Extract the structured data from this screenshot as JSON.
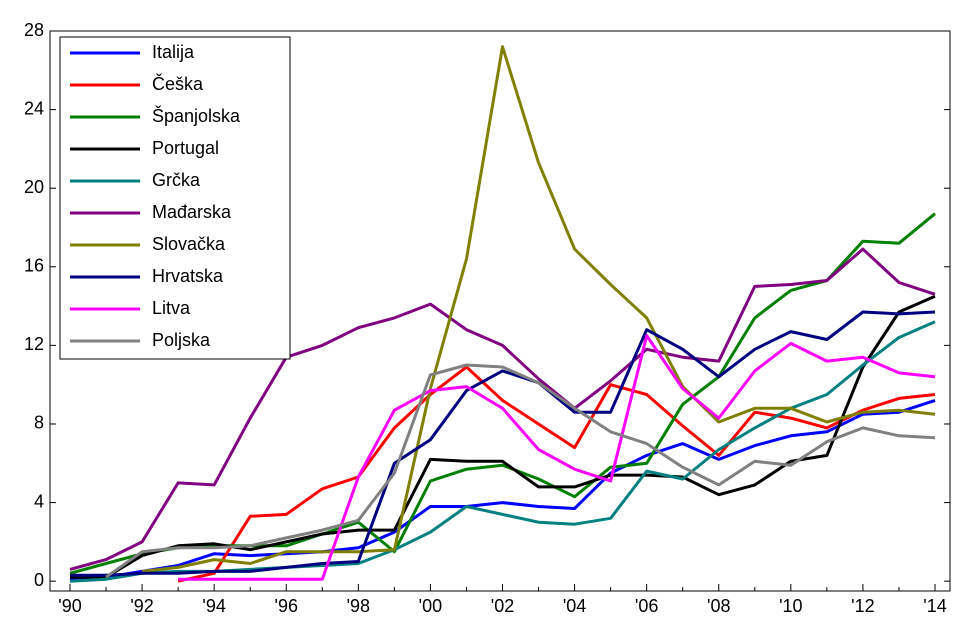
{
  "chart_data": {
    "type": "line",
    "categories": [
      "'90",
      null,
      "'92",
      null,
      "'94",
      null,
      "'96",
      null,
      "'98",
      null,
      "'00",
      null,
      "'02",
      null,
      "'04",
      null,
      "'06",
      null,
      "'08",
      null,
      "'10",
      null,
      "'12",
      null,
      "'14"
    ],
    "ylim": [
      -0.5,
      28
    ],
    "yticks": [
      0,
      4,
      8,
      12,
      16,
      20,
      24,
      28
    ],
    "grid": false,
    "legend": "upper left",
    "series": [
      {
        "name": "Italija",
        "color": "#0000ff",
        "values": [
          0.1,
          0.2,
          0.5,
          0.8,
          1.4,
          1.3,
          1.4,
          1.5,
          1.7,
          2.5,
          3.8,
          3.8,
          4.0,
          3.8,
          3.7,
          5.5,
          6.4,
          7.0,
          6.2,
          6.9,
          7.4,
          7.6,
          8.5,
          8.6,
          9.2
        ]
      },
      {
        "name": "Češka",
        "color": "#ff0000",
        "values": [
          null,
          null,
          null,
          0.0,
          0.4,
          3.3,
          3.4,
          4.7,
          5.3,
          7.8,
          9.5,
          10.9,
          9.2,
          8.0,
          6.8,
          10.0,
          9.5,
          7.9,
          6.4,
          8.6,
          8.3,
          7.8,
          8.7,
          9.3,
          9.5
        ]
      },
      {
        "name": "Španjolska",
        "color": "#008000",
        "values": [
          0.4,
          0.9,
          1.4,
          1.7,
          1.8,
          1.8,
          1.8,
          2.4,
          3.0,
          1.5,
          5.1,
          5.7,
          5.9,
          5.2,
          4.3,
          5.8,
          6.0,
          9.0,
          10.4,
          13.4,
          14.8,
          15.3,
          17.3,
          17.2,
          18.7
        ]
      },
      {
        "name": "Portugal",
        "color": "#000000",
        "values": [
          0.2,
          0.2,
          1.3,
          1.8,
          1.9,
          1.6,
          2.0,
          2.4,
          2.6,
          2.6,
          6.2,
          6.1,
          6.1,
          4.8,
          4.8,
          5.4,
          5.4,
          5.3,
          4.4,
          4.9,
          6.1,
          6.4,
          10.9,
          13.7,
          14.5
        ]
      },
      {
        "name": "Grčka",
        "color": "#008080",
        "values": [
          0.0,
          0.1,
          0.4,
          0.5,
          0.5,
          0.6,
          0.7,
          0.8,
          0.9,
          1.6,
          2.5,
          3.8,
          3.4,
          3.0,
          2.9,
          3.2,
          5.6,
          5.2,
          6.7,
          7.8,
          8.8,
          9.5,
          11.0,
          12.4,
          13.2
        ]
      },
      {
        "name": "Mađarska",
        "color": "#800080",
        "values": [
          0.6,
          1.1,
          2.0,
          5.0,
          4.9,
          8.3,
          11.4,
          12.0,
          12.9,
          13.4,
          14.1,
          12.8,
          12.0,
          10.3,
          8.8,
          10.2,
          11.8,
          11.4,
          11.2,
          15.0,
          15.1,
          15.3,
          16.9,
          15.2,
          14.6
        ]
      },
      {
        "name": "Slovačka",
        "color": "#808000",
        "values": [
          null,
          null,
          0.5,
          0.7,
          1.1,
          0.9,
          1.5,
          1.5,
          1.5,
          1.6,
          9.8,
          16.4,
          27.2,
          21.3,
          16.9,
          15.1,
          13.4,
          9.9,
          8.1,
          8.8,
          8.8,
          8.1,
          8.6,
          8.7,
          8.5
        ]
      },
      {
        "name": "Hrvatska",
        "color": "#000080",
        "values": [
          0.3,
          0.3,
          0.4,
          0.4,
          0.5,
          0.5,
          0.7,
          0.9,
          1.0,
          6.0,
          7.2,
          9.7,
          10.7,
          10.1,
          8.6,
          8.6,
          12.8,
          11.8,
          10.4,
          11.8,
          12.7,
          12.3,
          13.7,
          13.6,
          13.7
        ]
      },
      {
        "name": "Litva",
        "color": "#ff00ff",
        "values": [
          null,
          null,
          null,
          0.1,
          0.1,
          0.1,
          0.1,
          0.1,
          5.3,
          8.7,
          9.7,
          9.9,
          8.8,
          6.7,
          5.7,
          5.1,
          12.5,
          9.8,
          8.3,
          10.7,
          12.1,
          11.2,
          11.4,
          10.6,
          10.4
        ]
      },
      {
        "name": "Poljska",
        "color": "#808080",
        "values": [
          null,
          0.2,
          1.5,
          1.7,
          1.7,
          1.8,
          2.2,
          2.6,
          3.1,
          5.5,
          10.5,
          11.0,
          10.9,
          10.1,
          8.8,
          7.6,
          7.0,
          5.8,
          4.9,
          6.1,
          5.9,
          7.1,
          7.8,
          7.4,
          7.3
        ]
      }
    ]
  }
}
